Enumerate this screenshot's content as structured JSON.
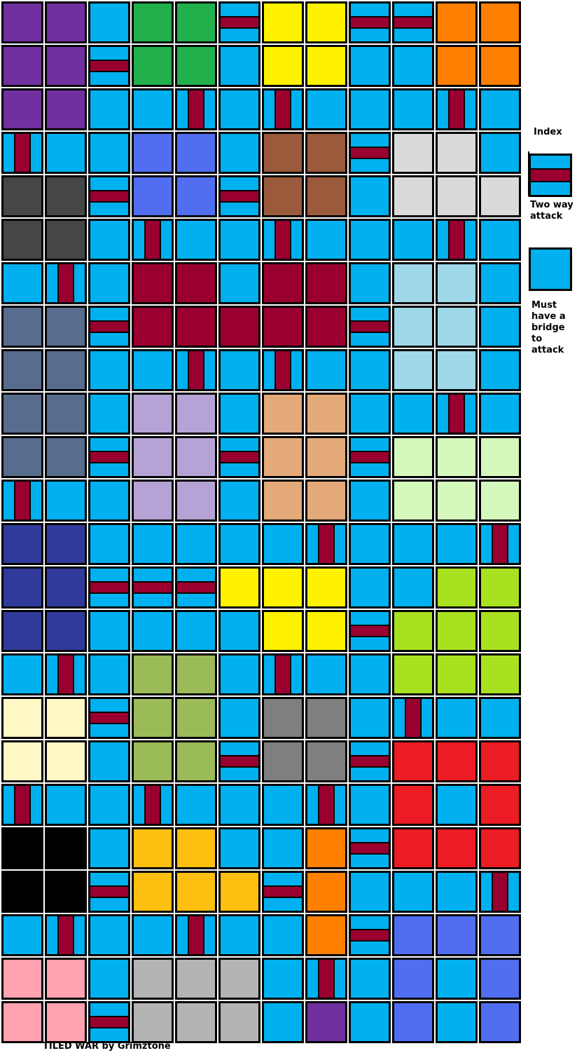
{
  "colors": {
    "P": "#7030a0",
    "C": "#00b0ef",
    "G": "#22b04c",
    "Y": "#fff200",
    "O": "#ff7f00",
    "L": "#516ef0",
    "N": "#9b5a3c",
    "W": "#dadada",
    "K": "#464646",
    "M": "#990030",
    "A": "#9fd8e8",
    "S": "#586d8d",
    "V": "#b6a3d6",
    "T": "#e4aa7a",
    "E": "#d5f8bc",
    "D": "#303a9a",
    "H": "#a8e11f",
    "Q": "#9bbb59",
    "U": "#fff8c6",
    "R": "#7f7f7f",
    "X": "#ec1c24",
    "Z": "#000000",
    "F": "#fdbf10",
    "I": "#ffa3b1",
    "J": "#b4b4b4",
    "bridge": "#990030"
  },
  "board_rows": [
    "PPCGGhYYhhOO",
    "PPhGGCYYCCOO",
    "PPCCvCvCCCvC",
    "vCCLLCNNhWWC",
    "KKhLLhNNCWWW",
    "KKCvCCvCCCvC",
    "CvCMMCMMCAAC",
    "SShMMMMMhAAC",
    "SSCCvCvCCAAC",
    "SSCVVCTTCCvC",
    "SShVVhTThEEE",
    "vCCVVCTTCEEE",
    "DDCCCCCvCCCv",
    "DDhhhYYYCCHH",
    "DDCCCCYYhHHH",
    "CvCQQCvCCHHH",
    "UUhQQCRRCvCC",
    "UUCQQhRRhXXX",
    "vCCvCCCvCXCX",
    "ZZCFFCCOhXXX",
    "ZZhFFFhOCCCv",
    "CvCCvCCOhLLL",
    "IICJJJCvCLCL",
    "IIhJJJCPCLCL"
  ],
  "legend": {
    "index_label": "Index",
    "two_way_label": "Two way attack",
    "must_bridge_label": "Must have a bridge to attack"
  },
  "footer": {
    "credit": "TILED WAR by Grimztone"
  }
}
